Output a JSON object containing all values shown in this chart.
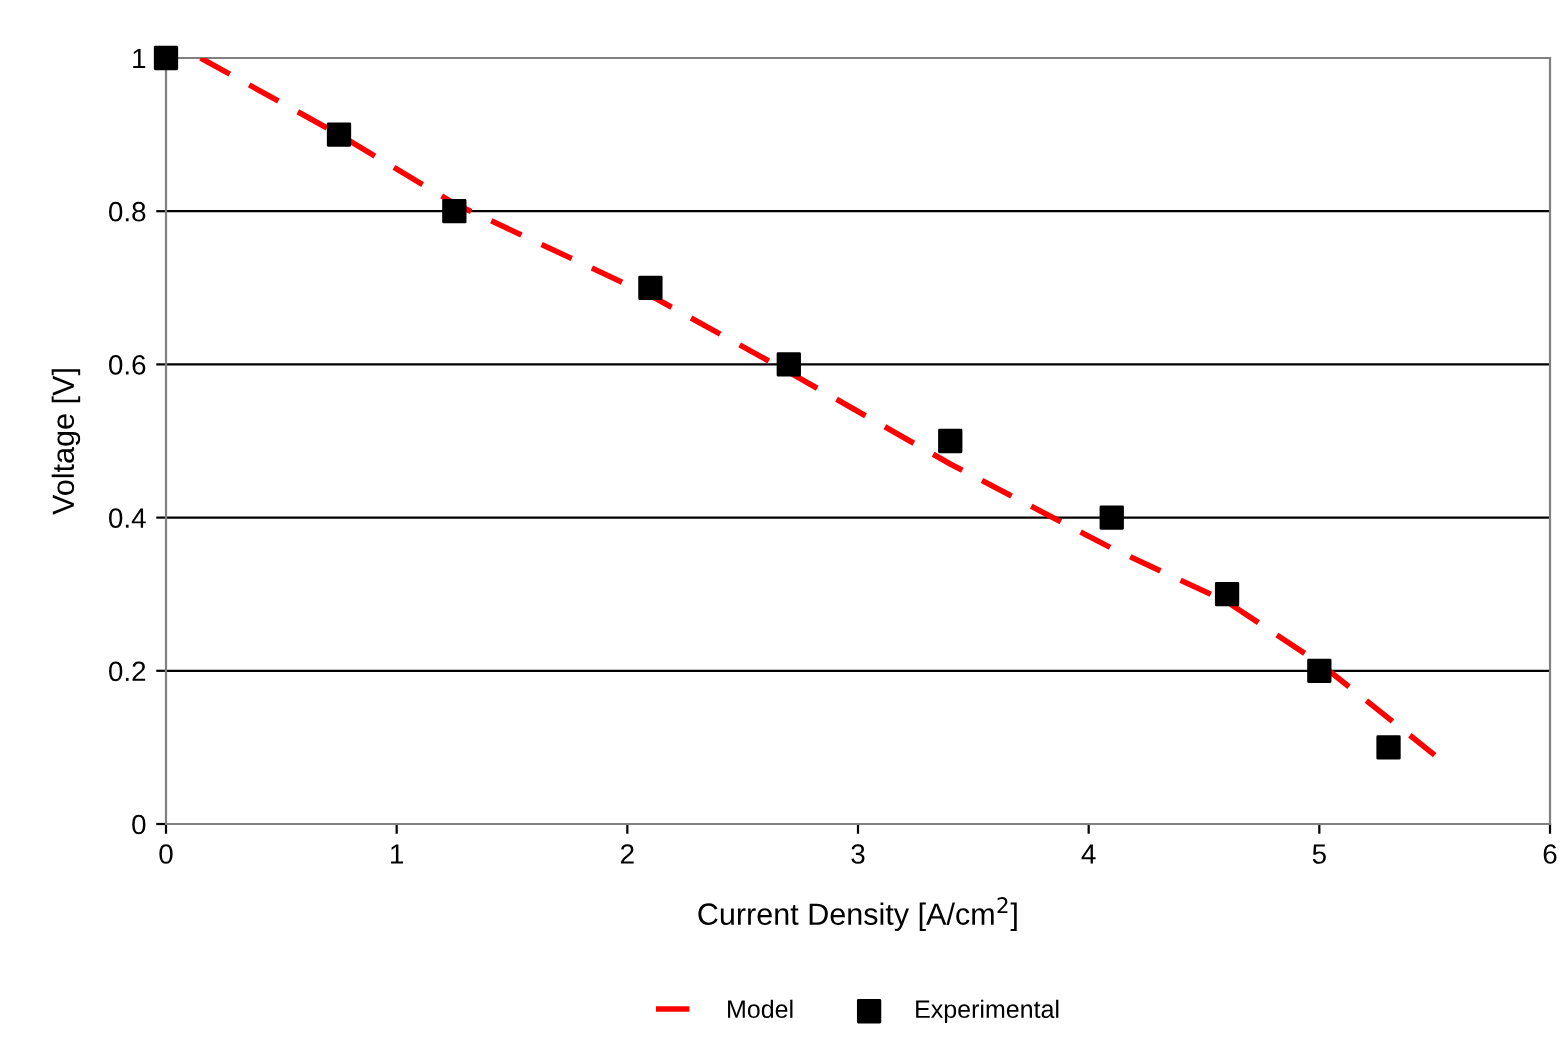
{
  "chart_data": {
    "type": "scatter",
    "xlabel": "Current Density [A/cm$^{2}$]",
    "ylabel": "Voltage [V]",
    "xlim": [
      0,
      6
    ],
    "xticks": [
      0,
      1,
      2,
      3,
      4,
      5,
      6
    ],
    "ylim": [
      0,
      1
    ],
    "yticks": [
      0,
      0.2,
      0.4,
      0.6,
      0.8,
      1
    ],
    "grid": "y",
    "legend": "bottom",
    "series": [
      {
        "name": "Model",
        "type": "line",
        "color": "#ff0000",
        "line_style": "dashed",
        "marker": "none",
        "x": [
          0.15,
          0.75,
          1.25,
          2.1,
          2.7,
          3.4,
          4.1,
          4.6,
          5.0,
          5.5
        ],
        "values": [
          1.0,
          0.9,
          0.81,
          0.69,
          0.59,
          0.47,
          0.36,
          0.29,
          0.21,
          0.09
        ]
      },
      {
        "name": "Experimental",
        "color": "#000000",
        "marker": "square",
        "x": [
          0,
          0.75,
          1.25,
          2.1,
          2.7,
          3.4,
          4.1,
          4.6,
          5.0,
          5.3
        ],
        "values": [
          1.0,
          0.9,
          0.8,
          0.7,
          0.6,
          0.5,
          0.4,
          0.3,
          0.2,
          0.1
        ]
      }
    ]
  }
}
